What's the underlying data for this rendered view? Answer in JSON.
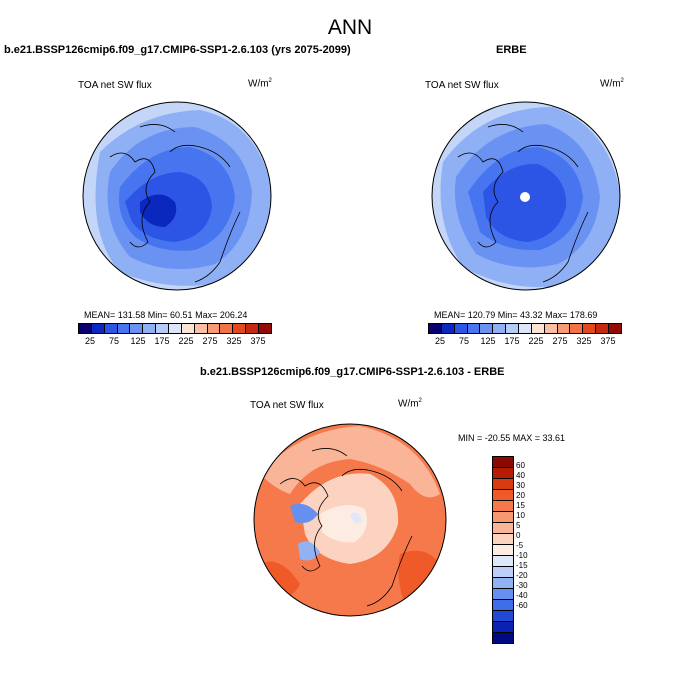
{
  "figure": {
    "title": "ANN",
    "panel_a": {
      "case": "b.e21.BSSP126cmip6.f09_g17.CMIP6-SSP1-2.6.103 (yrs 2075-2099)",
      "field": "TOA net SW flux",
      "units": "W/m",
      "units_sup": "2",
      "stats": "MEAN= 131.58  Min=  60.51  Max= 206.24"
    },
    "panel_b": {
      "case": "ERBE",
      "field": "TOA net SW flux",
      "units": "W/m",
      "units_sup": "2",
      "stats": "MEAN= 120.79  Min=  43.32  Max= 178.69"
    },
    "panel_c": {
      "case": "b.e21.BSSP126cmip6.f09_g17.CMIP6-SSP1-2.6.103 - ERBE",
      "field": "TOA net SW flux",
      "units": "W/m",
      "units_sup": "2",
      "stats": "MIN = -20.55 MAX =  33.61"
    },
    "abs_colorbar": {
      "colors": [
        "#08006e",
        "#0a28bd",
        "#2c54e5",
        "#4775f0",
        "#6a92f2",
        "#8fb0f5",
        "#b5ccf7",
        "#dbe6fb",
        "#fde3d4",
        "#fbc0a4",
        "#f89a73",
        "#f47248",
        "#e5481f",
        "#c52a10",
        "#920c05"
      ],
      "ticks": [
        "25",
        "75",
        "125",
        "175",
        "225",
        "275",
        "325",
        "375"
      ]
    },
    "diff_colorbar": {
      "colors": [
        "#8a0900",
        "#b81b05",
        "#d93a0f",
        "#ef5a28",
        "#f5794a",
        "#f89870",
        "#fab598",
        "#fcd3c0",
        "#fcece2",
        "#dde8fa",
        "#bcd0f7",
        "#93b2f3",
        "#6690ef",
        "#3f6ee9",
        "#2149d6",
        "#0a22b3",
        "#000882"
      ],
      "labels": [
        "60",
        "40",
        "30",
        "20",
        "15",
        "10",
        "5",
        "0",
        "-5",
        "-10",
        "-15",
        "-20",
        "-30",
        "-40",
        "-60"
      ]
    }
  }
}
